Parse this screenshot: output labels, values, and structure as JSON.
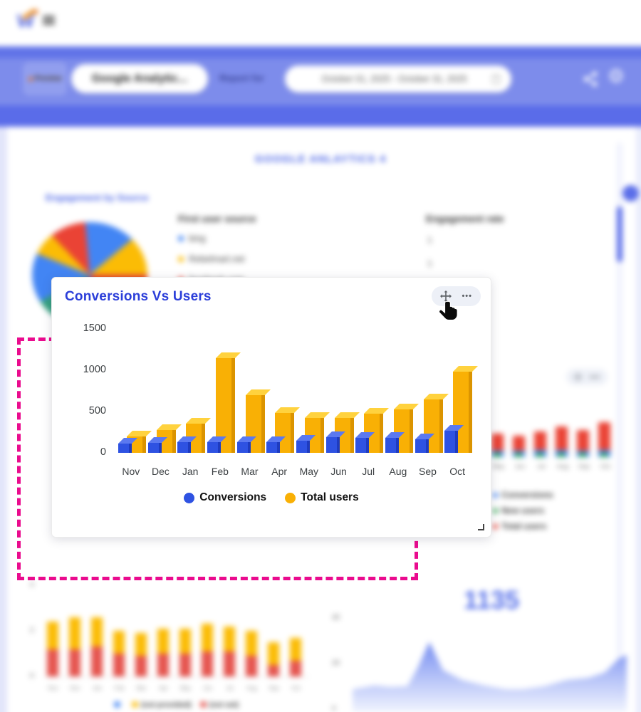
{
  "topbar": {
    "logo_text": "W",
    "menu_icon": "hamburger-icon"
  },
  "header": {
    "preview_label": "Preview",
    "report_name": "Google Analytic...",
    "report_for_label": "Report for",
    "date_range": "October 01, 2025 - October 31, 2025",
    "settings_glyph": "⚙",
    "colors": {
      "band_top": "#6173e8",
      "band_main": "#7d8ceb",
      "band_bottom": "#5a6ce9"
    }
  },
  "page": {
    "title": "GOOGLE ANLAYTICS 4",
    "section_title": "Engagement by Source",
    "first_user_source": {
      "header": "First user source",
      "items": [
        {
          "label": "bing",
          "color": "#4285F4"
        },
        {
          "label": "Rebelmart.net",
          "color": "#FBBC05"
        },
        {
          "label": "facebook.com",
          "color": "#EA4335"
        }
      ]
    },
    "engagement_rate": {
      "header": "Engagement rate",
      "values": [
        "1",
        "1"
      ]
    },
    "big_number": "1135"
  },
  "widget": {
    "title": "Conversions Vs Users",
    "menu_glyph": "•••",
    "accent_color": "#2b3ed9"
  },
  "dropzone": {
    "color": "#ea0b8e"
  },
  "chart_data": [
    {
      "id": "conversions-vs-users",
      "type": "bar",
      "style": "3d",
      "title": "Conversions Vs Users",
      "categories": [
        "Nov",
        "Dec",
        "Jan",
        "Feb",
        "Mar",
        "Apr",
        "May",
        "Jun",
        "Jul",
        "Aug",
        "Sep",
        "Oct"
      ],
      "series": [
        {
          "name": "Conversions",
          "color": "#2E52E2",
          "values": [
            110,
            120,
            130,
            130,
            130,
            130,
            150,
            190,
            180,
            180,
            160,
            270
          ]
        },
        {
          "name": "Total users",
          "color": "#F9B005",
          "values": [
            200,
            280,
            350,
            1150,
            700,
            480,
            420,
            420,
            470,
            530,
            650,
            980
          ]
        }
      ],
      "ylim": [
        0,
        1500
      ],
      "yticks": [
        0,
        500,
        1000,
        1500
      ],
      "legend_position": "bottom",
      "grid": false
    },
    {
      "id": "background-right-bar",
      "type": "bar",
      "categories": [
        "May",
        "Jun",
        "Jul",
        "Aug",
        "Sep",
        "Oct"
      ],
      "series": [
        {
          "name": "Conversions",
          "color": "#4285F4",
          "values": [
            90,
            90,
            100,
            100,
            90,
            100
          ]
        },
        {
          "name": "New users",
          "color": "#34A853",
          "values": [
            60,
            60,
            60,
            60,
            60,
            60
          ]
        },
        {
          "name": "Total users",
          "color": "#EA4335",
          "values": [
            330,
            300,
            360,
            430,
            380,
            490
          ]
        }
      ],
      "legend_position": "bottom-left"
    },
    {
      "id": "background-stacked-bar",
      "type": "bar",
      "stacked": true,
      "categories": [
        "Nov",
        "Dec",
        "Jan",
        "Feb",
        "Mar",
        "Apr",
        "May",
        "Jun",
        "Jul",
        "Aug",
        "Sep",
        "Oct"
      ],
      "series": [
        {
          "name": "(not set)",
          "color": "#E5544E",
          "values": [
            1.2,
            1.2,
            1.3,
            1.0,
            0.9,
            1.0,
            1.0,
            1.1,
            1.1,
            0.9,
            0.5,
            0.7
          ]
        },
        {
          "name": "(not provided)",
          "color": "#FBBC05",
          "values": [
            1.2,
            1.4,
            1.3,
            1.0,
            1.0,
            1.1,
            1.1,
            1.2,
            1.1,
            1.1,
            1.0,
            1.0
          ]
        }
      ],
      "legend_items": [
        {
          "label": "",
          "color": "#4285F4"
        },
        {
          "label": "(not provided)",
          "color": "#FBBC05"
        },
        {
          "label": "(not set)",
          "color": "#E5544E"
        }
      ],
      "yticks": [
        0,
        2,
        4
      ]
    },
    {
      "id": "background-area",
      "type": "area",
      "label": "1135",
      "color": "#5b74ea",
      "x": [
        0,
        8,
        14,
        20,
        24,
        28,
        33,
        40,
        48,
        56,
        62,
        70,
        78,
        86,
        92,
        97,
        100
      ],
      "values": [
        30,
        35,
        33,
        34,
        60,
        92,
        55,
        42,
        35,
        30,
        30,
        34,
        42,
        45,
        52,
        70,
        75
      ],
      "yticks": [
        0,
        20,
        40
      ]
    },
    {
      "id": "background-pie",
      "type": "pie",
      "slices": [
        {
          "color": "#EA4335",
          "deg": 15
        },
        {
          "color": "#4285F4",
          "deg": 55
        },
        {
          "color": "#FBBC05",
          "deg": 40
        },
        {
          "color": "#EA4335",
          "deg": 65
        },
        {
          "color": "#7B52D6",
          "deg": 55
        },
        {
          "color": "#34A080",
          "deg": 32
        },
        {
          "color": "#4285F4",
          "deg": 50
        },
        {
          "color": "#FBBC05",
          "deg": 24
        },
        {
          "color": "#EA4335",
          "deg": 24
        }
      ]
    }
  ]
}
